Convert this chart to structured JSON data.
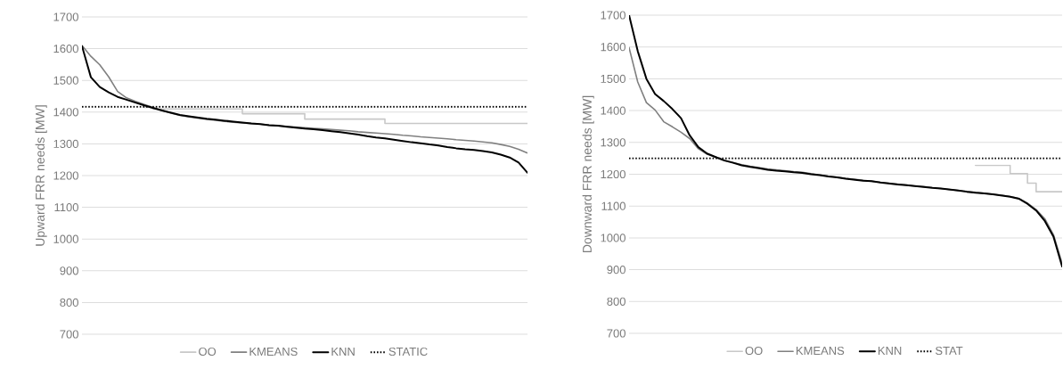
{
  "chart_data": [
    {
      "type": "line",
      "ylabel": "Upward FRR needs [MW]",
      "categories": [
        null,
        null,
        null,
        null,
        null,
        null,
        null,
        null,
        null,
        null,
        null,
        null,
        null,
        null,
        null,
        null,
        null,
        null,
        null,
        null,
        null,
        null,
        null,
        null,
        null,
        null,
        null,
        null,
        null,
        null,
        null,
        null,
        null,
        null,
        null,
        null,
        null,
        null,
        null,
        null,
        null,
        null,
        null,
        null,
        null,
        null,
        null,
        null,
        null,
        null,
        null
      ],
      "ylim": [
        700,
        1700
      ],
      "yticks": [
        700,
        800,
        900,
        1000,
        1100,
        1200,
        1300,
        1400,
        1500,
        1600,
        1700
      ],
      "grid": "y",
      "legend": "bottom",
      "tick_labels": "y",
      "series": [
        {
          "name": "OO",
          "type": "step",
          "color": "#c8c8c8",
          "values": [
            null,
            null,
            null,
            null,
            null,
            null,
            null,
            1415,
            1410,
            1410,
            1410,
            1410,
            1410,
            1410,
            1410,
            1410,
            1410,
            1410,
            1395,
            1395,
            1395,
            1395,
            1395,
            1395,
            1395,
            1378,
            1378,
            1378,
            1378,
            1378,
            1378,
            1378,
            1378,
            1378,
            1364,
            1364,
            1364,
            1364,
            1364,
            1364,
            1364,
            1364,
            1364,
            1364,
            1364,
            1364,
            1364,
            1364,
            1364,
            1364,
            1364
          ]
        },
        {
          "name": "KMEANS",
          "color": "#808080",
          "values": [
            1610,
            1576,
            1549,
            1511,
            1465,
            1445,
            1434,
            1424,
            1414,
            1405,
            1397,
            1390,
            1385,
            1381,
            1377,
            1374,
            1371,
            1368,
            1366,
            1364,
            1362,
            1359,
            1357,
            1355,
            1353,
            1351,
            1349,
            1347,
            1345,
            1343,
            1341,
            1338,
            1336,
            1334,
            1332,
            1330,
            1327,
            1325,
            1322,
            1320,
            1318,
            1316,
            1313,
            1311,
            1309,
            1306,
            1303,
            1298,
            1292,
            1283,
            1271
          ]
        },
        {
          "name": "KNN",
          "color": "#000000",
          "values": [
            1608,
            1510,
            1479,
            1462,
            1448,
            1439,
            1430,
            1421,
            1413,
            1405,
            1398,
            1391,
            1387,
            1383,
            1379,
            1376,
            1373,
            1370,
            1367,
            1364,
            1362,
            1359,
            1357,
            1354,
            1351,
            1348,
            1346,
            1343,
            1340,
            1337,
            1333,
            1329,
            1324,
            1320,
            1317,
            1313,
            1309,
            1305,
            1302,
            1298,
            1295,
            1290,
            1286,
            1283,
            1281,
            1277,
            1273,
            1266,
            1257,
            1241,
            1209
          ]
        },
        {
          "name": "STATIC",
          "color": "#000000",
          "line_style": "dotted",
          "values": [
            1417,
            1417,
            1417,
            1417,
            1417,
            1417,
            1417,
            1417,
            1417,
            1417,
            1417,
            1417,
            1417,
            1417,
            1417,
            1417,
            1417,
            1417,
            1417,
            1417,
            1417,
            1417,
            1417,
            1417,
            1417,
            1417,
            1417,
            1417,
            1417,
            1417,
            1417,
            1417,
            1417,
            1417,
            1417,
            1417,
            1417,
            1417,
            1417,
            1417,
            1417,
            1417,
            1417,
            1417,
            1417,
            1417,
            1417,
            1417,
            1417,
            1417,
            1417
          ]
        }
      ]
    },
    {
      "type": "line",
      "ylabel": "Downward FRR needs [MW]",
      "categories": [
        null,
        null,
        null,
        null,
        null,
        null,
        null,
        null,
        null,
        null,
        null,
        null,
        null,
        null,
        null,
        null,
        null,
        null,
        null,
        null,
        null,
        null,
        null,
        null,
        null,
        null,
        null,
        null,
        null,
        null,
        null,
        null,
        null,
        null,
        null,
        null,
        null,
        null,
        null,
        null,
        null,
        null,
        null,
        null,
        null,
        null,
        null,
        null,
        null,
        null,
        null
      ],
      "ylim": [
        700,
        1700
      ],
      "yticks": [
        700,
        800,
        900,
        1000,
        1100,
        1200,
        1300,
        1400,
        1500,
        1600,
        1700
      ],
      "grid": "y",
      "legend": "bottom",
      "tick_labels": "y",
      "series": [
        {
          "name": "OO",
          "type": "step",
          "color": "#c8c8c8",
          "values": [
            null,
            null,
            null,
            null,
            null,
            null,
            null,
            null,
            null,
            null,
            null,
            null,
            null,
            null,
            null,
            null,
            null,
            null,
            null,
            null,
            null,
            null,
            null,
            null,
            null,
            null,
            null,
            null,
            null,
            null,
            null,
            null,
            null,
            null,
            null,
            null,
            null,
            null,
            null,
            null,
            1228,
            1228,
            1228,
            1228,
            1202,
            1202,
            1172,
            1145,
            1145,
            1145,
            1145
          ]
        },
        {
          "name": "KMEANS",
          "color": "#808080",
          "values": [
            1598,
            1490,
            1425,
            1402,
            1365,
            1349,
            1332,
            1312,
            1280,
            1263,
            1254,
            1244,
            1237,
            1230,
            1225,
            1221,
            1217,
            1214,
            1211,
            1208,
            1206,
            1202,
            1198,
            1194,
            1191,
            1187,
            1184,
            1181,
            1178,
            1175,
            1172,
            1169,
            1166,
            1163,
            1161,
            1158,
            1155,
            1152,
            1149,
            1146,
            1143,
            1140,
            1137,
            1134,
            1130,
            1124,
            1109,
            1089,
            1060,
            1010,
            920
          ]
        },
        {
          "name": "KNN",
          "color": "#000000",
          "values": [
            1700,
            1587,
            1500,
            1452,
            1430,
            1405,
            1376,
            1322,
            1285,
            1265,
            1254,
            1243,
            1236,
            1228,
            1223,
            1219,
            1214,
            1211,
            1209,
            1206,
            1204,
            1200,
            1197,
            1193,
            1190,
            1186,
            1183,
            1180,
            1178,
            1174,
            1171,
            1168,
            1166,
            1163,
            1160,
            1157,
            1155,
            1152,
            1149,
            1145,
            1142,
            1140,
            1137,
            1133,
            1129,
            1123,
            1107,
            1086,
            1053,
            1004,
            910
          ]
        },
        {
          "name": "STAT",
          "color": "#000000",
          "line_style": "dotted",
          "values": [
            1250,
            1250,
            1250,
            1250,
            1250,
            1250,
            1250,
            1250,
            1250,
            1250,
            1250,
            1250,
            1250,
            1250,
            1250,
            1250,
            1250,
            1250,
            1250,
            1250,
            1250,
            1250,
            1250,
            1250,
            1250,
            1250,
            1250,
            1250,
            1250,
            1250,
            1250,
            1250,
            1250,
            1250,
            1250,
            1250,
            1250,
            1250,
            1250,
            1250,
            1250,
            1250,
            1250,
            1250,
            1250,
            1250,
            1250,
            1250,
            1250,
            1250,
            1250
          ]
        }
      ]
    }
  ]
}
